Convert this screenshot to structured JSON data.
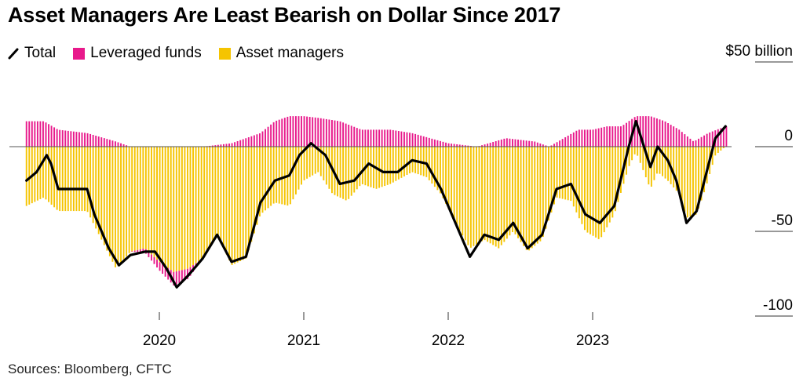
{
  "title": "Asset Managers Are Least Bearish on Dollar Since 2017",
  "source": "Sources: Bloomberg, CFTC",
  "legend": [
    {
      "label": "Total",
      "kind": "line",
      "color": "#000000"
    },
    {
      "label": "Leveraged funds",
      "kind": "box",
      "color": "#e8198b"
    },
    {
      "label": "Asset managers",
      "kind": "box",
      "color": "#f5c400"
    }
  ],
  "chart_data": {
    "type": "bar",
    "stacked": true,
    "title": "Asset Managers Are Least Bearish on Dollar Since 2017",
    "ylabel": "",
    "y_unit": "$50 billion",
    "ylim": [
      -105,
      50
    ],
    "y_ticks": [
      {
        "value": 50,
        "label": "$50 billion"
      },
      {
        "value": 0,
        "label": "0"
      },
      {
        "value": -50,
        "label": "-50"
      },
      {
        "value": -100,
        "label": "-100"
      }
    ],
    "x_ticks": [
      {
        "value": 2020.0,
        "label": "2020"
      },
      {
        "value": 2021.0,
        "label": "2021"
      },
      {
        "value": 2022.0,
        "label": "2022"
      },
      {
        "value": 2023.0,
        "label": "2023"
      }
    ],
    "xlim": [
      2019.0,
      2023.98
    ],
    "grid": false,
    "legend_position": "top-left",
    "colors": {
      "total": "#000000",
      "leveraged_funds": "#e8198b",
      "asset_managers": "#f5c400"
    },
    "series": [
      {
        "name": "Total",
        "type": "line",
        "points": [
          [
            2019.08,
            -20
          ],
          [
            2019.15,
            -15
          ],
          [
            2019.22,
            -5
          ],
          [
            2019.25,
            -10
          ],
          [
            2019.3,
            -25
          ],
          [
            2019.4,
            -25
          ],
          [
            2019.5,
            -25
          ],
          [
            2019.55,
            -40
          ],
          [
            2019.65,
            -60
          ],
          [
            2019.72,
            -70
          ],
          [
            2019.8,
            -64
          ],
          [
            2019.9,
            -62
          ],
          [
            2019.97,
            -62
          ],
          [
            2020.05,
            -72
          ],
          [
            2020.12,
            -83
          ],
          [
            2020.2,
            -76
          ],
          [
            2020.3,
            -66
          ],
          [
            2020.4,
            -52
          ],
          [
            2020.5,
            -68
          ],
          [
            2020.6,
            -65
          ],
          [
            2020.7,
            -33
          ],
          [
            2020.8,
            -20
          ],
          [
            2020.9,
            -17
          ],
          [
            2020.97,
            -5
          ],
          [
            2021.05,
            2
          ],
          [
            2021.15,
            -5
          ],
          [
            2021.25,
            -22
          ],
          [
            2021.35,
            -20
          ],
          [
            2021.45,
            -10
          ],
          [
            2021.55,
            -15
          ],
          [
            2021.65,
            -15
          ],
          [
            2021.75,
            -8
          ],
          [
            2021.85,
            -10
          ],
          [
            2021.95,
            -25
          ],
          [
            2022.05,
            -45
          ],
          [
            2022.15,
            -65
          ],
          [
            2022.25,
            -52
          ],
          [
            2022.35,
            -55
          ],
          [
            2022.45,
            -45
          ],
          [
            2022.55,
            -60
          ],
          [
            2022.65,
            -52
          ],
          [
            2022.75,
            -25
          ],
          [
            2022.85,
            -22
          ],
          [
            2022.95,
            -40
          ],
          [
            2023.05,
            -45
          ],
          [
            2023.15,
            -35
          ],
          [
            2023.25,
            0
          ],
          [
            2023.3,
            15
          ],
          [
            2023.4,
            -12
          ],
          [
            2023.45,
            0
          ],
          [
            2023.52,
            -8
          ],
          [
            2023.58,
            -20
          ],
          [
            2023.65,
            -45
          ],
          [
            2023.72,
            -38
          ],
          [
            2023.78,
            -18
          ],
          [
            2023.85,
            5
          ],
          [
            2023.92,
            12
          ]
        ]
      },
      {
        "name": "Leveraged funds",
        "type": "bar",
        "points": [
          [
            2019.08,
            15
          ],
          [
            2019.2,
            15
          ],
          [
            2019.3,
            10
          ],
          [
            2019.5,
            8
          ],
          [
            2019.7,
            3
          ],
          [
            2019.8,
            0
          ],
          [
            2020.0,
            -5
          ],
          [
            2020.1,
            -8
          ],
          [
            2020.2,
            -6
          ],
          [
            2020.3,
            0
          ],
          [
            2020.5,
            2
          ],
          [
            2020.7,
            8
          ],
          [
            2020.8,
            15
          ],
          [
            2020.9,
            18
          ],
          [
            2021.0,
            18
          ],
          [
            2021.1,
            17
          ],
          [
            2021.25,
            15
          ],
          [
            2021.4,
            10
          ],
          [
            2021.6,
            10
          ],
          [
            2021.75,
            8
          ],
          [
            2022.0,
            2
          ],
          [
            2022.2,
            0
          ],
          [
            2022.4,
            5
          ],
          [
            2022.6,
            3
          ],
          [
            2022.7,
            0
          ],
          [
            2022.8,
            5
          ],
          [
            2022.9,
            10
          ],
          [
            2023.0,
            10
          ],
          [
            2023.1,
            12
          ],
          [
            2023.2,
            12
          ],
          [
            2023.3,
            18
          ],
          [
            2023.4,
            18
          ],
          [
            2023.5,
            15
          ],
          [
            2023.6,
            10
          ],
          [
            2023.7,
            3
          ],
          [
            2023.8,
            8
          ],
          [
            2023.92,
            12
          ]
        ]
      },
      {
        "name": "Asset managers",
        "type": "bar",
        "points": [
          [
            2019.08,
            -35
          ],
          [
            2019.2,
            -30
          ],
          [
            2019.3,
            -38
          ],
          [
            2019.5,
            -38
          ],
          [
            2019.6,
            -55
          ],
          [
            2019.7,
            -72
          ],
          [
            2019.8,
            -62
          ],
          [
            2019.9,
            -60
          ],
          [
            2020.0,
            -68
          ],
          [
            2020.1,
            -74
          ],
          [
            2020.2,
            -72
          ],
          [
            2020.3,
            -66
          ],
          [
            2020.4,
            -52
          ],
          [
            2020.5,
            -70
          ],
          [
            2020.6,
            -66
          ],
          [
            2020.7,
            -40
          ],
          [
            2020.8,
            -33
          ],
          [
            2020.9,
            -35
          ],
          [
            2021.0,
            -20
          ],
          [
            2021.1,
            -15
          ],
          [
            2021.2,
            -28
          ],
          [
            2021.3,
            -32
          ],
          [
            2021.4,
            -22
          ],
          [
            2021.5,
            -25
          ],
          [
            2021.6,
            -22
          ],
          [
            2021.75,
            -15
          ],
          [
            2021.85,
            -18
          ],
          [
            2021.95,
            -28
          ],
          [
            2022.05,
            -45
          ],
          [
            2022.15,
            -60
          ],
          [
            2022.25,
            -55
          ],
          [
            2022.35,
            -60
          ],
          [
            2022.45,
            -50
          ],
          [
            2022.55,
            -62
          ],
          [
            2022.65,
            -55
          ],
          [
            2022.75,
            -30
          ],
          [
            2022.85,
            -32
          ],
          [
            2022.95,
            -50
          ],
          [
            2023.05,
            -55
          ],
          [
            2023.15,
            -40
          ],
          [
            2023.25,
            -12
          ],
          [
            2023.3,
            -3
          ],
          [
            2023.4,
            -25
          ],
          [
            2023.45,
            -15
          ],
          [
            2023.52,
            -20
          ],
          [
            2023.6,
            -28
          ],
          [
            2023.65,
            -42
          ],
          [
            2023.72,
            -40
          ],
          [
            2023.78,
            -25
          ],
          [
            2023.85,
            -5
          ],
          [
            2023.92,
            0
          ]
        ]
      }
    ]
  }
}
